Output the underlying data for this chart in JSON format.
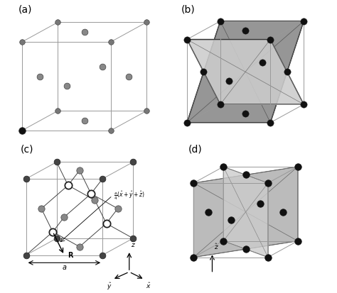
{
  "background_color": "#ffffff",
  "panel_labels": [
    "(a)",
    "(b)",
    "(c)",
    "(d)"
  ],
  "panel_label_fontsize": 10,
  "cube_edge_color": "#999999",
  "cube_edge_lw": 0.7,
  "annotation_fontsize": 6.5,
  "shade_light": "#c8c8c8",
  "shade_dark": "#888888",
  "shade_alpha": 0.85
}
